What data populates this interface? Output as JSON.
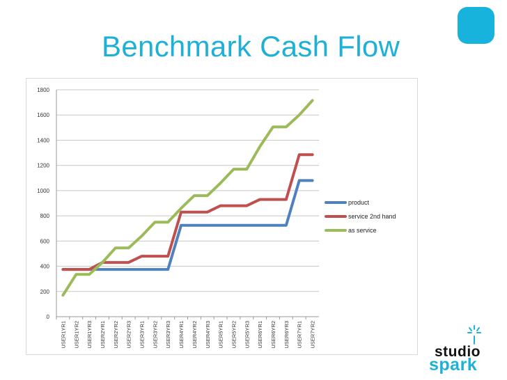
{
  "slide": {
    "title": "Benchmark Cash Flow",
    "logo_top": "studio",
    "logo_bottom": "spark"
  },
  "colors": {
    "title": "#1fb0d8",
    "accent_badge": "#17b3dc",
    "product": "#4f81bd",
    "service_2nd_hand": "#c0504d",
    "as_service": "#9bbb59"
  },
  "chart_data": {
    "type": "line",
    "title": "",
    "xlabel": "",
    "ylabel": "",
    "ylim": [
      0,
      1800
    ],
    "y_ticks": [
      0,
      200,
      400,
      600,
      800,
      1000,
      1200,
      1400,
      1600,
      1800
    ],
    "grid": true,
    "legend_position": "right",
    "categories": [
      "USER1YR1",
      "USER1YR2",
      "USER1YR3",
      "USER2YR1",
      "USER2YR2",
      "USER2YR3",
      "USER3YR1",
      "USER3YR2",
      "USER3YR3",
      "USER4YR1",
      "USER4YR2",
      "USER4YR3",
      "USER5YR1",
      "USER5YR2",
      "USER5YR3",
      "USER6YR1",
      "USER6YR2",
      "USER6YR3",
      "USER7YR1",
      "USER7YR2"
    ],
    "series": [
      {
        "name": "product",
        "color": "#4f81bd",
        "values": [
          375,
          375,
          375,
          375,
          375,
          375,
          375,
          375,
          375,
          725,
          725,
          725,
          725,
          725,
          725,
          725,
          725,
          725,
          1080,
          1080
        ]
      },
      {
        "name": "service 2nd hand",
        "color": "#c0504d",
        "values": [
          375,
          375,
          375,
          430,
          430,
          430,
          480,
          480,
          480,
          830,
          830,
          830,
          880,
          880,
          880,
          930,
          930,
          930,
          1285,
          1285
        ]
      },
      {
        "name": "as service",
        "color": "#9bbb59",
        "values": [
          170,
          335,
          335,
          430,
          545,
          545,
          640,
          750,
          750,
          860,
          960,
          960,
          1060,
          1170,
          1170,
          1350,
          1505,
          1505,
          1600,
          1715
        ]
      }
    ]
  }
}
